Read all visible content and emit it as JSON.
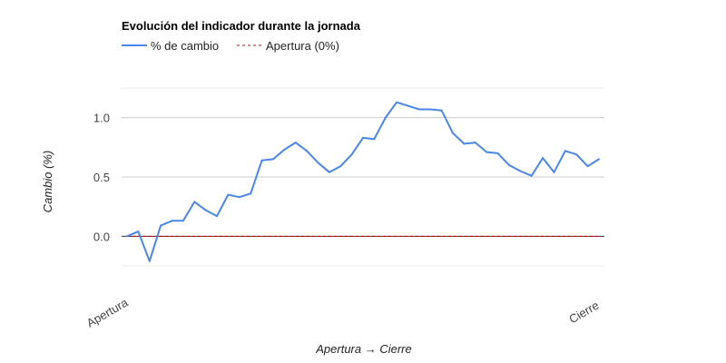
{
  "chart_data": {
    "type": "line",
    "title": "Evolución del indicador durante la jornada",
    "xlabel": "Apertura → Cierre",
    "ylabel": "Cambio (%)",
    "ylim": [
      -0.25,
      1.25
    ],
    "yticks": [
      "1.0",
      "0.5",
      "0.0"
    ],
    "ytick_values": [
      1.0,
      0.5,
      0.0
    ],
    "x_tick_labels": [
      "Apertura",
      "Cierre"
    ],
    "grid": true,
    "legend_position": "top-left",
    "series": [
      {
        "name": "% de cambio",
        "color": "#4a86e8",
        "style": "solid",
        "values": [
          0.0,
          0.04,
          -0.21,
          0.09,
          0.13,
          0.13,
          0.29,
          0.22,
          0.17,
          0.35,
          0.33,
          0.36,
          0.64,
          0.65,
          0.73,
          0.79,
          0.72,
          0.62,
          0.54,
          0.59,
          0.69,
          0.83,
          0.82,
          1.0,
          1.13,
          1.1,
          1.07,
          1.07,
          1.06,
          0.87,
          0.78,
          0.79,
          0.71,
          0.7,
          0.6,
          0.55,
          0.51,
          0.66,
          0.54,
          0.72,
          0.69,
          0.59,
          0.65
        ]
      },
      {
        "name": "Apertura (0%)",
        "color": "#cc0000",
        "style": "dashed",
        "values": [
          0,
          0
        ]
      }
    ]
  }
}
